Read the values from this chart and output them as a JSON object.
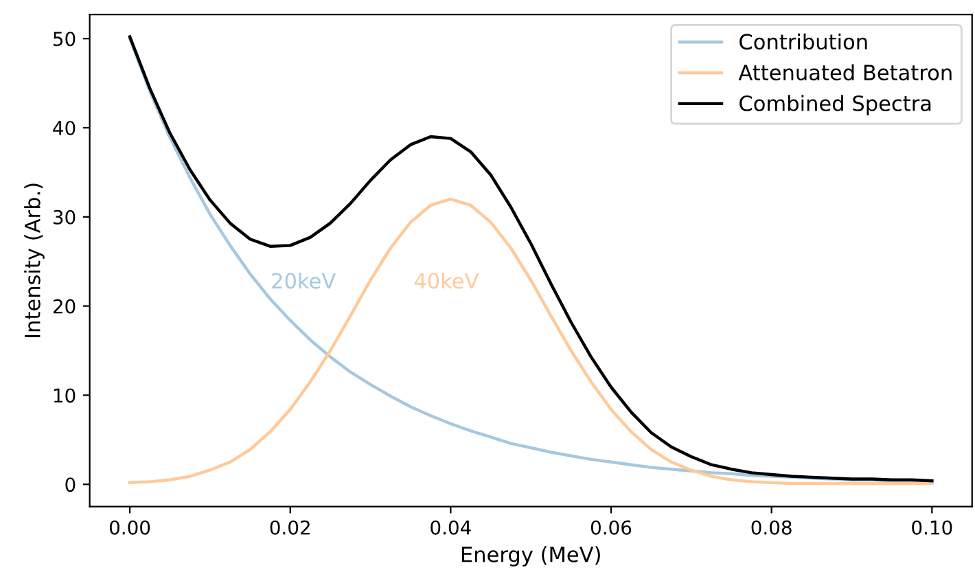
{
  "chart_data": {
    "type": "line",
    "xlabel": "Energy (MeV)",
    "ylabel": "Intensity (Arb.)",
    "x": [
      0,
      0.0025,
      0.005,
      0.0075,
      0.01,
      0.0125,
      0.015,
      0.0175,
      0.02,
      0.0225,
      0.025,
      0.0275,
      0.03,
      0.0325,
      0.035,
      0.0375,
      0.04,
      0.0425,
      0.045,
      0.0475,
      0.05,
      0.0525,
      0.055,
      0.0575,
      0.06,
      0.0625,
      0.065,
      0.0675,
      0.07,
      0.0725,
      0.075,
      0.0775,
      0.08,
      0.0825,
      0.085,
      0.0875,
      0.09,
      0.0925,
      0.095,
      0.0975,
      0.1
    ],
    "series": [
      {
        "name": "Contribution",
        "color": "#a6c8e0",
        "values": [
          50,
          44.1,
          38.9,
          34.4,
          30.3,
          26.8,
          23.6,
          20.8,
          18.4,
          16.2,
          14.3,
          12.6,
          11.2,
          9.9,
          8.7,
          7.7,
          6.8,
          6.0,
          5.3,
          4.6,
          4.1,
          3.6,
          3.2,
          2.8,
          2.5,
          2.2,
          1.9,
          1.7,
          1.5,
          1.3,
          1.2,
          1.0,
          0.9,
          0.8,
          0.7,
          0.6,
          0.5,
          0.5,
          0.4,
          0.4,
          0.3
        ]
      },
      {
        "name": "Attenuated Betatron",
        "color": "#ffc999",
        "values": [
          0.2,
          0.3,
          0.5,
          0.9,
          1.6,
          2.5,
          3.9,
          5.9,
          8.4,
          11.5,
          15.0,
          18.9,
          22.9,
          26.5,
          29.4,
          31.3,
          32.0,
          31.3,
          29.4,
          26.5,
          22.9,
          18.9,
          15.0,
          11.5,
          8.4,
          5.9,
          3.9,
          2.5,
          1.6,
          0.9,
          0.5,
          0.3,
          0.2,
          0.1,
          0.1,
          0.1,
          0.1,
          0.1,
          0.1,
          0.1,
          0.1
        ]
      },
      {
        "name": "Combined Spectra",
        "color": "#000000",
        "values": [
          50.2,
          44.4,
          39.4,
          35.3,
          31.9,
          29.3,
          27.5,
          26.7,
          26.8,
          27.7,
          29.3,
          31.5,
          34.1,
          36.4,
          38.1,
          39.0,
          38.8,
          37.3,
          34.7,
          31.1,
          27.0,
          22.5,
          18.2,
          14.3,
          10.9,
          8.1,
          5.8,
          4.2,
          3.1,
          2.2,
          1.7,
          1.3,
          1.1,
          0.9,
          0.8,
          0.7,
          0.6,
          0.6,
          0.5,
          0.5,
          0.4
        ]
      }
    ],
    "annotations": [
      "20keV",
      "40keV"
    ],
    "xlim": [
      -0.005,
      0.105
    ],
    "ylim": [
      -2.5,
      52.7
    ],
    "xticks": [
      {
        "value": 0,
        "label": "0.00"
      },
      {
        "value": 0.02,
        "label": "0.02"
      },
      {
        "value": 0.04,
        "label": "0.04"
      },
      {
        "value": 0.06,
        "label": "0.06"
      },
      {
        "value": 0.08,
        "label": "0.08"
      },
      {
        "value": 0.1,
        "label": "0.10"
      }
    ],
    "yticks": [
      0,
      10,
      20,
      30,
      40,
      50
    ],
    "legend": "top right",
    "grid": false,
    "marker": "none",
    "line_style": "solid"
  }
}
